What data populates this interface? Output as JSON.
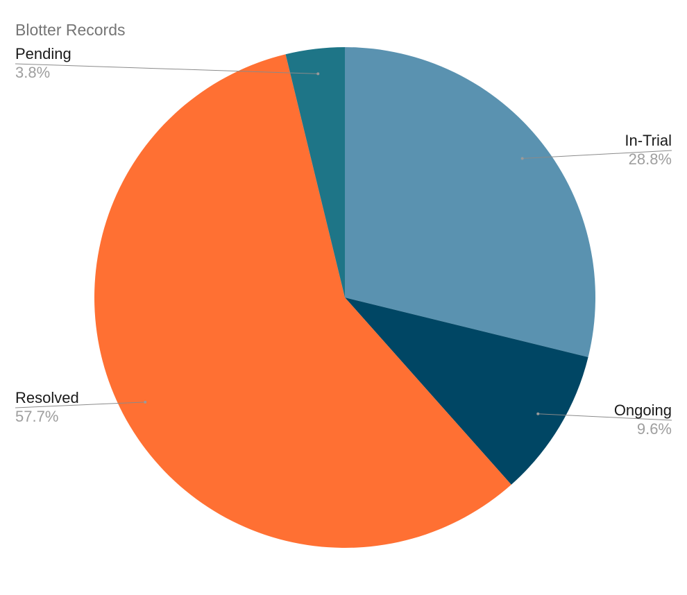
{
  "chart_data": {
    "type": "pie",
    "title": "Blotter Records",
    "categories": [
      "In-Trial",
      "Ongoing",
      "Resolved",
      "Pending"
    ],
    "values": [
      28.8,
      9.6,
      57.7,
      3.8
    ],
    "labels": [
      "28.8%",
      "9.6%",
      "57.7%",
      "3.8%"
    ],
    "colors": [
      "#5a92b0",
      "#004664",
      "#ff7033",
      "#1e7587"
    ],
    "label_placement": [
      "right",
      "right",
      "left",
      "left"
    ],
    "start_angle": "12 o'clock",
    "direction": "clockwise"
  }
}
